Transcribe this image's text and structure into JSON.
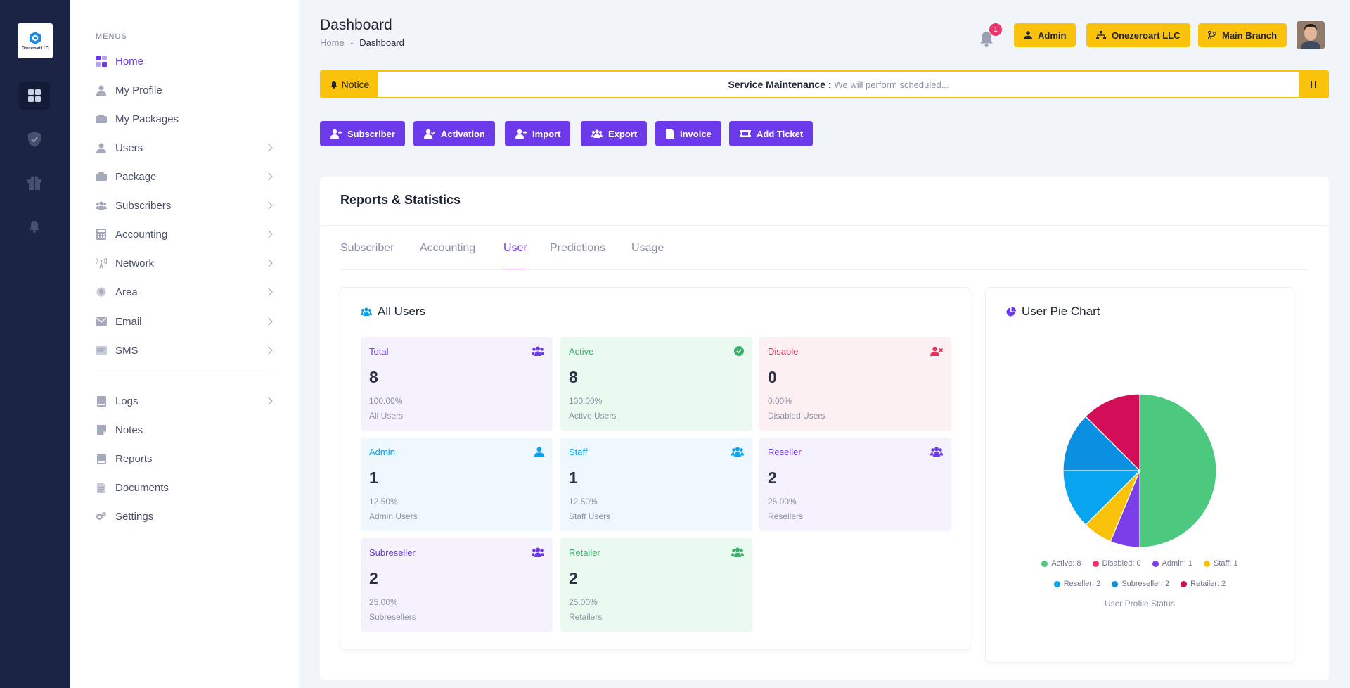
{
  "rail": {
    "logo_caption": "Onezeroart LLC"
  },
  "sidebar": {
    "menus_label": "MENUS",
    "items": [
      {
        "label": "Home",
        "icon": "home-grid-icon"
      },
      {
        "label": "My Profile",
        "icon": "user-icon"
      },
      {
        "label": "My Packages",
        "icon": "package-icon"
      },
      {
        "label": "Users",
        "icon": "user-icon"
      },
      {
        "label": "Package",
        "icon": "package-icon"
      },
      {
        "label": "Subscribers",
        "icon": "users-icon"
      },
      {
        "label": "Accounting",
        "icon": "calculator-icon"
      },
      {
        "label": "Network",
        "icon": "antenna-icon"
      },
      {
        "label": "Area",
        "icon": "location-icon"
      },
      {
        "label": "Email",
        "icon": "email-icon"
      },
      {
        "label": "SMS",
        "icon": "sms-icon"
      }
    ],
    "bottom_items": [
      {
        "label": "Logs",
        "icon": "logs-icon"
      },
      {
        "label": "Notes",
        "icon": "notes-icon"
      },
      {
        "label": "Reports",
        "icon": "reports-icon"
      },
      {
        "label": "Documents",
        "icon": "document-icon"
      },
      {
        "label": "Settings",
        "icon": "gear-icon"
      }
    ]
  },
  "header": {
    "title": "Dashboard",
    "breadcrumb_home": "Home",
    "breadcrumb_sep": "-",
    "breadcrumb_current": "Dashboard",
    "notification_count": "1",
    "admin_label": "Admin",
    "company_label": "Onezeroart LLC",
    "branch_label": "Main Branch"
  },
  "notice": {
    "tag": "Notice",
    "heading": "Service Maintenance :",
    "text": "We will perform scheduled..."
  },
  "actions": {
    "subscriber": "Subscriber",
    "activation": "Activation",
    "import": "Import",
    "export": "Export",
    "invoice": "Invoice",
    "add_ticket": "Add Ticket"
  },
  "reports": {
    "title": "Reports & Statistics",
    "tabs": [
      "Subscriber",
      "Accounting",
      "User",
      "Predictions",
      "Usage"
    ],
    "active_tab": "User"
  },
  "all_users": {
    "title": "All Users",
    "cards": [
      {
        "label": "Total",
        "value": "8",
        "pct": "100.00%",
        "sub": "All Users"
      },
      {
        "label": "Active",
        "value": "8",
        "pct": "100.00%",
        "sub": "Active Users"
      },
      {
        "label": "Disable",
        "value": "0",
        "pct": "0.00%",
        "sub": "Disabled Users"
      },
      {
        "label": "Admin",
        "value": "1",
        "pct": "12.50%",
        "sub": "Admin Users"
      },
      {
        "label": "Staff",
        "value": "1",
        "pct": "12.50%",
        "sub": "Staff Users"
      },
      {
        "label": "Reseller",
        "value": "2",
        "pct": "25.00%",
        "sub": "Resellers"
      },
      {
        "label": "Subreseller",
        "value": "2",
        "pct": "25.00%",
        "sub": "Subresellers"
      },
      {
        "label": "Retailer",
        "value": "2",
        "pct": "25.00%",
        "sub": "Retailers"
      }
    ]
  },
  "pie_panel": {
    "title": "User Pie Chart"
  },
  "chart_data": {
    "type": "pie",
    "title": "",
    "xlabel": "User Profile Status",
    "slices": [
      {
        "name": "Active",
        "value": 8,
        "legend": "Active: 8",
        "color": "#4cc97f"
      },
      {
        "name": "Disabled",
        "value": 0,
        "legend": "Disabled: 0",
        "color": "#f0346b"
      },
      {
        "name": "Admin",
        "value": 1,
        "legend": "Admin: 1",
        "color": "#7a3fe8"
      },
      {
        "name": "Staff",
        "value": 1,
        "legend": "Staff: 1",
        "color": "#fbc20c"
      },
      {
        "name": "Reseller",
        "value": 2,
        "legend": "Reseller: 2",
        "color": "#0aa5f0"
      },
      {
        "name": "Subreseller",
        "value": 2,
        "legend": "Subreseller: 2",
        "color": "#0b8fe0"
      },
      {
        "name": "Retailer",
        "value": 2,
        "legend": "Retailer: 2",
        "color": "#d30d57"
      }
    ],
    "legend_position": "bottom"
  },
  "colors": {
    "accent": "#6d3aeb",
    "warning": "#fbc20c",
    "rail": "#1b2444"
  }
}
